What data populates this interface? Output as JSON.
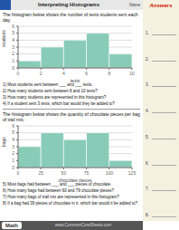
{
  "title": "Interpreting Histograms",
  "annotations": [
    "Name",
    "Answers",
    "1.",
    "2.",
    "3.",
    "4.",
    "5.",
    "6.",
    "7.",
    "8.",
    "Math",
    "www.CommonCoreSheets.com"
  ],
  "chart_data": [
    {
      "type": "histogram",
      "title": "The histogram below shows the number of texts students sent each day.",
      "xlabel": "texts",
      "ylabel": "students",
      "bins": [
        0,
        2,
        4,
        6,
        8,
        10
      ],
      "values": [
        1,
        3,
        4,
        5,
        2
      ],
      "color": "#88ccb8",
      "xlim": [
        0,
        10
      ],
      "ylim": [
        0,
        6
      ],
      "xticks": [
        0,
        2,
        4,
        6,
        8,
        10
      ],
      "yticks": [
        0,
        1,
        2,
        3,
        4,
        5,
        6
      ],
      "grid": "y",
      "annotations": [
        "1)  Most students sent between ___ and ___ texts.",
        "2)  How many students sent between 8 and 10 texts?",
        "3)  How many students are represented in this histogram?",
        "4)  If a student sent 3 texts, which bar would they be added to?"
      ]
    },
    {
      "type": "histogram",
      "title": "The histogram below shows the quantity of chocolate pieces per bag of trail mix.",
      "xlabel": "chocolate pieces",
      "ylabel": "bags",
      "bins": [
        0,
        25,
        50,
        75,
        100,
        125
      ],
      "values": [
        3,
        5,
        4,
        5,
        1
      ],
      "color": "#88ccb8",
      "xlim": [
        0,
        125
      ],
      "ylim": [
        0,
        6
      ],
      "xticks": [
        0,
        25,
        50,
        75,
        100,
        125
      ],
      "yticks": [
        0,
        1,
        2,
        3,
        4,
        5,
        6
      ],
      "grid": "y",
      "annotations": [
        "5)  Most bags had between ___ and ___ pieces of chocolate.",
        "6)  How many bags had between 60 and 79 chocolate pieces?",
        "7)  How many bags of trail mix are represented in this histogram?",
        "8)  If a bag had 39 pieces of chocolate in it, which bar would it be added to?"
      ]
    }
  ]
}
